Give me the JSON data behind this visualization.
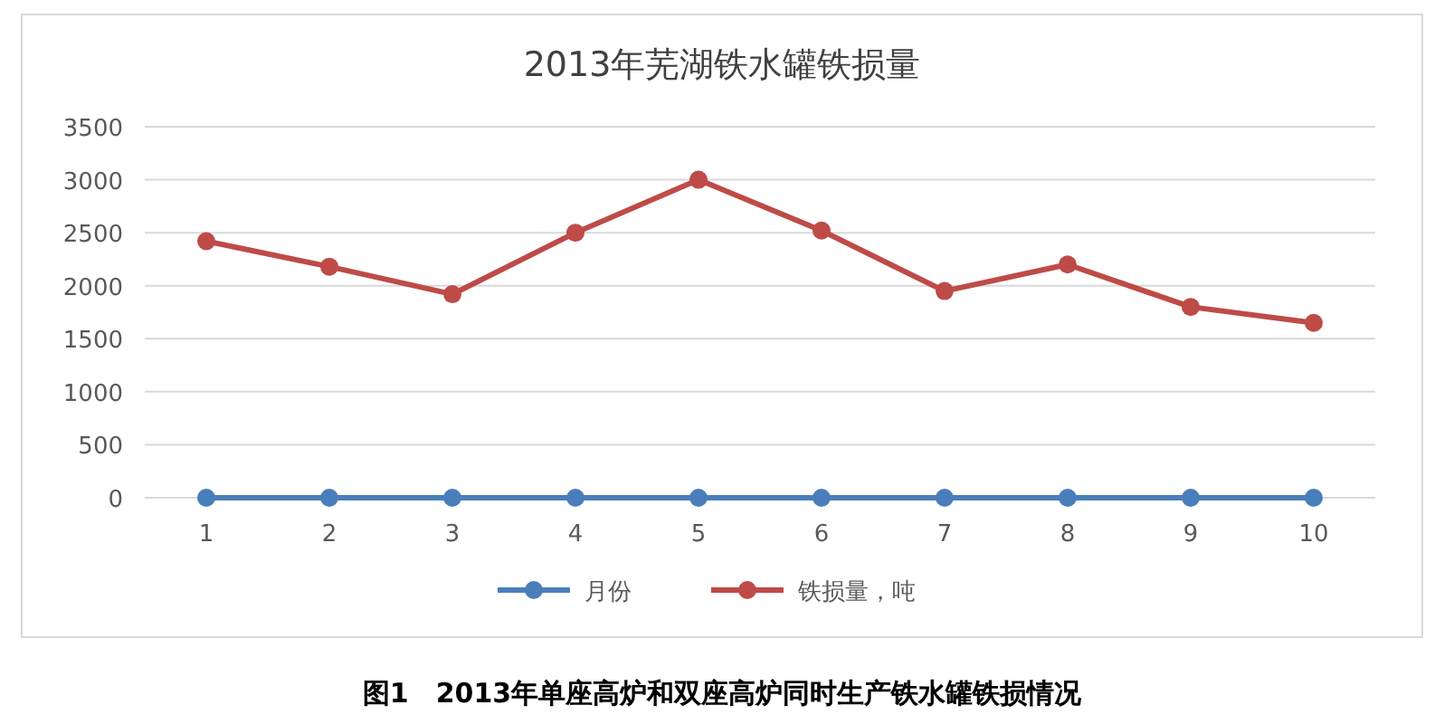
{
  "chart_data": {
    "type": "line",
    "title": "2013年芜湖铁水罐铁损量",
    "categories": [
      "1",
      "2",
      "3",
      "4",
      "5",
      "6",
      "7",
      "8",
      "9",
      "10"
    ],
    "series": [
      {
        "name": "月份",
        "color": "#4a7ebb",
        "values": [
          0,
          0,
          0,
          0,
          0,
          0,
          0,
          0,
          0,
          0
        ]
      },
      {
        "name": "铁损量，吨",
        "color": "#be4b48",
        "values": [
          2420,
          2180,
          1920,
          2500,
          3000,
          2520,
          1950,
          2200,
          1800,
          1650
        ]
      }
    ],
    "ylim": [
      0,
      3500
    ],
    "yticks": [
      0,
      500,
      1000,
      1500,
      2000,
      2500,
      3000,
      3500
    ],
    "grid": "y",
    "legend": "bottom",
    "marker": "circle",
    "line_style": "solid",
    "annotations": [
      "图1　2013年单座高炉和双座高炉同时生产铁水罐铁损情况"
    ]
  }
}
